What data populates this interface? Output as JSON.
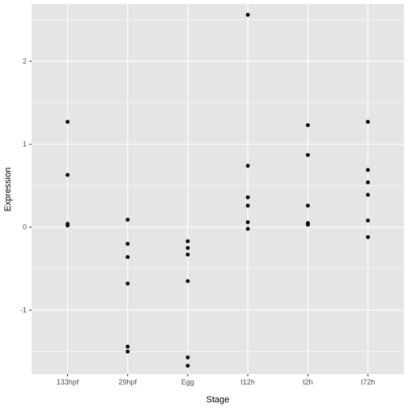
{
  "chart_data": {
    "type": "scatter",
    "xlabel": "Stage",
    "ylabel": "Expression",
    "categories": [
      "133hpf",
      "29hpf",
      "Egg",
      "t12h",
      "t2h",
      "t72h"
    ],
    "y_ticks": [
      -1,
      0,
      1,
      2
    ],
    "y_tick_labels": [
      "-1",
      "0",
      "1",
      "2"
    ],
    "ylim": [
      -1.77,
      2.69
    ],
    "grid": true,
    "colors": {
      "panel": "#e5e5e5",
      "grid": "#ffffff",
      "point": "#000000"
    },
    "points": [
      {
        "x": "133hpf",
        "y": 1.27
      },
      {
        "x": "133hpf",
        "y": 0.63
      },
      {
        "x": "133hpf",
        "y": 0.04
      },
      {
        "x": "133hpf",
        "y": 0.02
      },
      {
        "x": "29hpf",
        "y": 0.09
      },
      {
        "x": "29hpf",
        "y": -0.2
      },
      {
        "x": "29hpf",
        "y": -0.36
      },
      {
        "x": "29hpf",
        "y": -0.68
      },
      {
        "x": "29hpf",
        "y": -1.44
      },
      {
        "x": "29hpf",
        "y": -1.5
      },
      {
        "x": "Egg",
        "y": -0.17
      },
      {
        "x": "Egg",
        "y": -0.25
      },
      {
        "x": "Egg",
        "y": -0.33
      },
      {
        "x": "Egg",
        "y": -0.65
      },
      {
        "x": "Egg",
        "y": -1.57
      },
      {
        "x": "Egg",
        "y": -1.67
      },
      {
        "x": "t12h",
        "y": 2.56
      },
      {
        "x": "t12h",
        "y": 0.74
      },
      {
        "x": "t12h",
        "y": 0.36
      },
      {
        "x": "t12h",
        "y": 0.26
      },
      {
        "x": "t12h",
        "y": 0.06
      },
      {
        "x": "t12h",
        "y": -0.02
      },
      {
        "x": "t2h",
        "y": 1.23
      },
      {
        "x": "t2h",
        "y": 0.87
      },
      {
        "x": "t2h",
        "y": 0.26
      },
      {
        "x": "t2h",
        "y": 0.05
      },
      {
        "x": "t2h",
        "y": 0.04
      },
      {
        "x": "t2h",
        "y": 0.03
      },
      {
        "x": "t72h",
        "y": 1.27
      },
      {
        "x": "t72h",
        "y": 0.69
      },
      {
        "x": "t72h",
        "y": 0.54
      },
      {
        "x": "t72h",
        "y": 0.39
      },
      {
        "x": "t72h",
        "y": 0.08
      },
      {
        "x": "t72h",
        "y": -0.12
      }
    ]
  }
}
